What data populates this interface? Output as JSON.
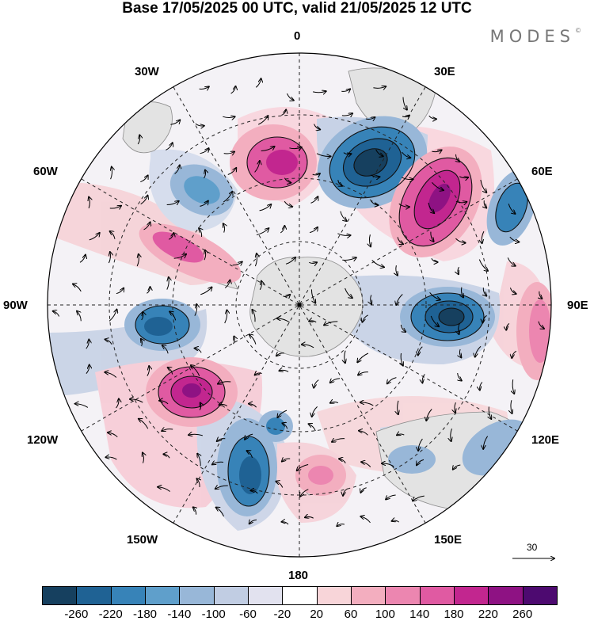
{
  "title": "Base 17/05/2025 00 UTC, valid 21/05/2025 12 UTC",
  "brand": "MODES",
  "brand_mark": "©",
  "longitude_labels": {
    "lon_0": "0",
    "lon_30e": "30E",
    "lon_60e": "60E",
    "lon_90e": "90E",
    "lon_120e": "120E",
    "lon_150e": "150E",
    "lon_180": "180",
    "lon_150w": "150W",
    "lon_120w": "120W",
    "lon_90w": "90W",
    "lon_60w": "60W",
    "lon_30w": "30W"
  },
  "reference_vector": {
    "value": "30"
  },
  "colorbar": {
    "ticks": [
      "-260",
      "-220",
      "-180",
      "-140",
      "-100",
      "-60",
      "-20",
      "20",
      "60",
      "100",
      "140",
      "180",
      "220",
      "260"
    ],
    "colors": [
      "#16405f",
      "#1f6294",
      "#3783b8",
      "#5f9fcb",
      "#98b7d8",
      "#c1cde3",
      "#e2e2ef",
      "#ffffff",
      "#f8d5d9",
      "#f3aebf",
      "#ec86b0",
      "#e05aa2",
      "#c2268f",
      "#8e1283",
      "#4d0a70"
    ]
  },
  "anomaly_centers": [
    {
      "kind": "negative",
      "sign_value": -260
    },
    {
      "kind": "positive",
      "sign_value": 220
    },
    {
      "kind": "negative",
      "sign_value": -260
    },
    {
      "kind": "positive",
      "sign_value": 220
    },
    {
      "kind": "negative",
      "sign_value": -180
    },
    {
      "kind": "negative",
      "sign_value": -180
    },
    {
      "kind": "positive",
      "sign_value": 260
    },
    {
      "kind": "negative",
      "sign_value": -220
    },
    {
      "kind": "negative",
      "sign_value": -140
    }
  ],
  "icons": {
    "pole_marker": "center-dot-icon",
    "reference_arrow": "arrow-right-icon"
  }
}
